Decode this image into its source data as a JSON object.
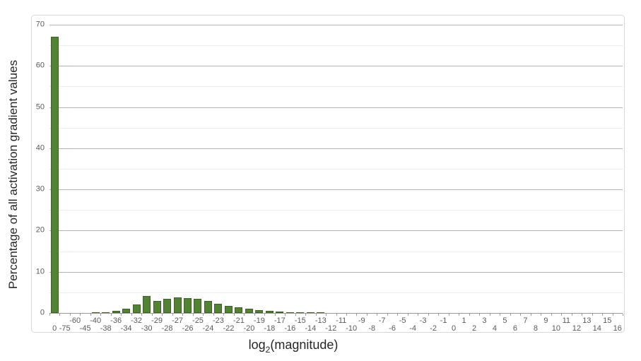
{
  "chart_data": {
    "type": "bar",
    "title": "",
    "xlabel": "log2(magnitude)",
    "xlabel_display": {
      "pre": "log",
      "sub": "2",
      "post": "(magnitude)"
    },
    "ylabel": "Percentage of all activation gradient values",
    "ylim": [
      0,
      70
    ],
    "y_ticks": [
      0,
      10,
      20,
      30,
      40,
      50,
      60,
      70
    ],
    "grid": {
      "major_step": 10,
      "minor_step": 5,
      "legend": "none"
    },
    "bar_color": "#538135",
    "bar_border_color": "#3f6127",
    "categories": [
      "0",
      "-75",
      "-60",
      "-45",
      "-40",
      "-38",
      "-36",
      "-34",
      "-32",
      "-30",
      "-29",
      "-28",
      "-27",
      "-26",
      "-25",
      "-24",
      "-23",
      "-22",
      "-21",
      "-20",
      "-19",
      "-18",
      "-17",
      "-16",
      "-15",
      "-14",
      "-13",
      "-12",
      "-11",
      "-10",
      "-9",
      "-8",
      "-7",
      "-6",
      "-5",
      "-4",
      "-3",
      "-2",
      "-1",
      "0",
      "1",
      "2",
      "3",
      "4",
      "5",
      "6",
      "7",
      "8",
      "9",
      "10",
      "11",
      "12",
      "13",
      "14",
      "15",
      "16"
    ],
    "values": [
      67,
      0,
      0,
      0,
      0.1,
      0.25,
      0.5,
      1.0,
      2.05,
      4.1,
      2.9,
      3.4,
      3.8,
      3.6,
      3.4,
      3.0,
      2.2,
      1.7,
      1.3,
      1.0,
      0.75,
      0.5,
      0.35,
      0.25,
      0.15,
      0.12,
      0.1,
      0.08,
      0.07,
      0.06,
      0.05,
      0.04,
      0.03,
      0,
      0,
      0,
      0,
      0,
      0,
      0,
      0,
      0,
      0,
      0,
      0,
      0,
      0,
      0,
      0,
      0,
      0,
      0,
      0,
      0,
      0,
      0
    ]
  }
}
